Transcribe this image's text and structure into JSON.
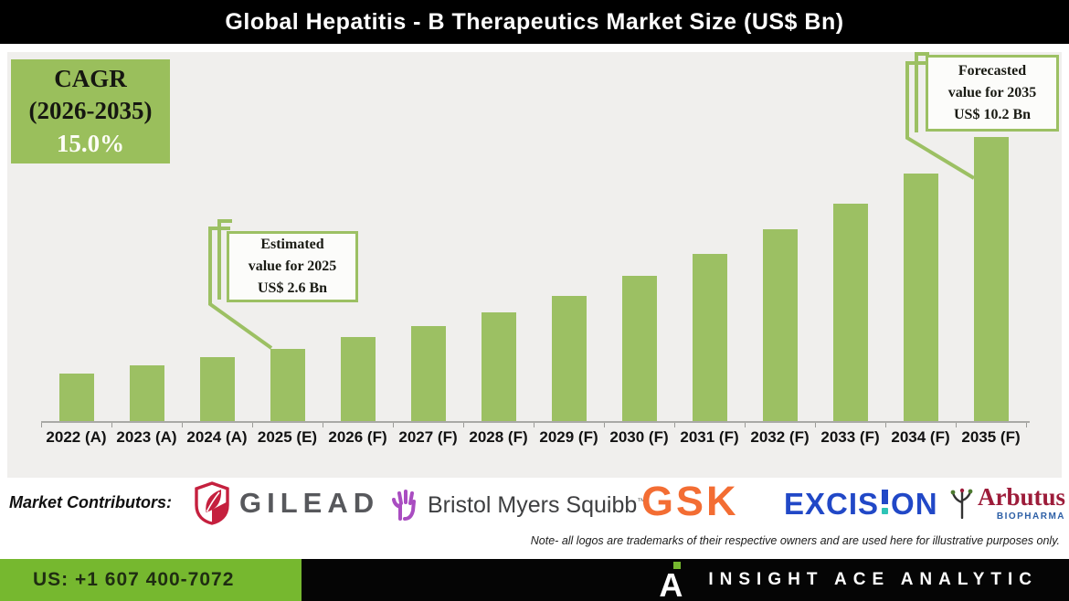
{
  "title": "Global Hepatitis - B Therapeutics Market Size (US$ Bn)",
  "cagr_box": {
    "line1": "CAGR",
    "line2": "(2026-2035)",
    "line3": "15.0%"
  },
  "callouts": {
    "estimated": {
      "line1": "Estimated",
      "line2": "value for 2025",
      "line3": "US$ 2.6 Bn"
    },
    "forecasted": {
      "line1": "Forecasted",
      "line2": "value for 2035",
      "line3": "US$ 10.2 Bn"
    }
  },
  "chart_data": {
    "type": "bar",
    "title": "Global Hepatitis - B Therapeutics Market Size (US$ Bn)",
    "categories": [
      "2022 (A)",
      "2023 (A)",
      "2024 (A)",
      "2025 (E)",
      "2026 (F)",
      "2027 (F)",
      "2028 (F)",
      "2029 (F)",
      "2030 (F)",
      "2031 (F)",
      "2032 (F)",
      "2033 (F)",
      "2034 (F)",
      "2035 (F)"
    ],
    "values": [
      1.7,
      2.0,
      2.3,
      2.6,
      3.0,
      3.4,
      3.9,
      4.5,
      5.2,
      6.0,
      6.9,
      7.8,
      8.9,
      10.2
    ],
    "unit": "US$ Bn",
    "cagr_2026_2035_pct": 15.0,
    "estimated_2025": 2.6,
    "forecasted_2035": 10.2,
    "xlabel": "",
    "ylabel": "",
    "ylim": [
      0,
      11
    ],
    "y_axis_visible": false,
    "grid": false,
    "legend": "none",
    "bar_color": "#9cc063"
  },
  "contributors": {
    "label": "Market Contributors:",
    "logos": {
      "gilead": "GILEAD",
      "bms": "Bristol Myers Squibb",
      "bms_tm": "™",
      "gsk": "GSK",
      "excision_left": "EXCIS",
      "excision_right": "ON",
      "arbutus": "Arbutus",
      "arbutus_sub": "BIOPHARMA"
    },
    "note": "Note- all logos are trademarks of their respective owners and are used here for illustrative purposes only."
  },
  "footer": {
    "phone": "US: +1 607 400-7072",
    "brand": "INSIGHT ACE ANALYTIC"
  },
  "colors": {
    "bar_green": "#9cc063",
    "cagr_green": "#9abf5c",
    "footer_green": "#76b82f",
    "panel_bg": "#f0efed",
    "title_bg": "#000000",
    "gilead_red": "#c5203e",
    "bms_purple": "#a94dc1",
    "gsk_orange": "#f36d33",
    "excision_blue": "#2148c7",
    "excision_teal": "#2ec4b6",
    "arbutus_red": "#9d1c3a",
    "arbutus_blue": "#2d5fa6"
  }
}
